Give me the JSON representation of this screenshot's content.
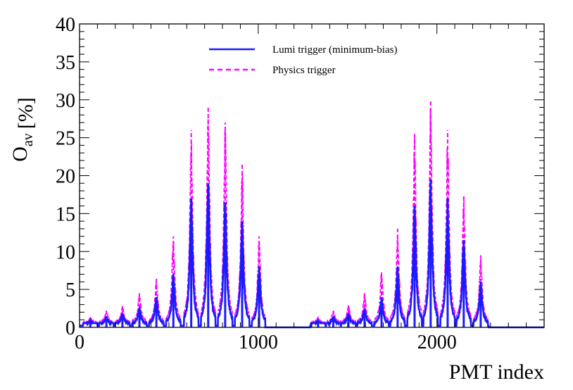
{
  "chart_data": {
    "type": "line",
    "xlabel": "PMT index",
    "ylabel": "O",
    "ylabel_subscript": "av",
    "ylabel_unit": "[%]",
    "xlim": [
      0,
      2600
    ],
    "ylim": [
      0,
      40
    ],
    "x_major_ticks": [
      0,
      1000,
      2000
    ],
    "x_tick_labels": [
      "0",
      "1000",
      "2000"
    ],
    "y_major_ticks": [
      0,
      5,
      10,
      15,
      20,
      25,
      30,
      35,
      40
    ],
    "y_tick_labels": [
      "0",
      "5",
      "10",
      "15",
      "20",
      "25",
      "30",
      "35",
      "40"
    ],
    "legend_position": "top-center",
    "series": [
      {
        "name": "Lumi trigger (minimum-bias)",
        "color": "#1a1aff",
        "style": "solid",
        "base_level": 0.5,
        "peaks": [
          {
            "x": 60,
            "value": 0.9
          },
          {
            "x": 150,
            "value": 1.4
          },
          {
            "x": 240,
            "value": 1.8
          },
          {
            "x": 335,
            "value": 2.6
          },
          {
            "x": 430,
            "value": 4.0
          },
          {
            "x": 525,
            "value": 7.0
          },
          {
            "x": 625,
            "value": 17.0
          },
          {
            "x": 720,
            "value": 19.0
          },
          {
            "x": 815,
            "value": 16.5
          },
          {
            "x": 910,
            "value": 14.0
          },
          {
            "x": 1005,
            "value": 8.0
          },
          {
            "x": 1335,
            "value": 0.9
          },
          {
            "x": 1420,
            "value": 1.4
          },
          {
            "x": 1505,
            "value": 1.8
          },
          {
            "x": 1595,
            "value": 2.5
          },
          {
            "x": 1690,
            "value": 4.0
          },
          {
            "x": 1780,
            "value": 8.0
          },
          {
            "x": 1875,
            "value": 16.0
          },
          {
            "x": 1965,
            "value": 19.5
          },
          {
            "x": 2060,
            "value": 17.0
          },
          {
            "x": 2150,
            "value": 11.5
          },
          {
            "x": 2245,
            "value": 6.0
          }
        ]
      },
      {
        "name": "Physics trigger",
        "color": "#ff00ff",
        "style": "dashed",
        "base_level": 0.7,
        "peaks": [
          {
            "x": 60,
            "value": 1.3
          },
          {
            "x": 150,
            "value": 2.2
          },
          {
            "x": 240,
            "value": 2.8
          },
          {
            "x": 335,
            "value": 4.5
          },
          {
            "x": 430,
            "value": 6.5
          },
          {
            "x": 525,
            "value": 12.0
          },
          {
            "x": 625,
            "value": 26.0
          },
          {
            "x": 720,
            "value": 29.0
          },
          {
            "x": 815,
            "value": 27.0
          },
          {
            "x": 910,
            "value": 21.5
          },
          {
            "x": 1005,
            "value": 12.0
          },
          {
            "x": 1335,
            "value": 1.3
          },
          {
            "x": 1420,
            "value": 2.2
          },
          {
            "x": 1505,
            "value": 2.9
          },
          {
            "x": 1595,
            "value": 4.5
          },
          {
            "x": 1690,
            "value": 7.5
          },
          {
            "x": 1780,
            "value": 13.0
          },
          {
            "x": 1875,
            "value": 25.5
          },
          {
            "x": 1965,
            "value": 30.0
          },
          {
            "x": 2060,
            "value": 26.0
          },
          {
            "x": 2150,
            "value": 17.5
          },
          {
            "x": 2245,
            "value": 9.5
          }
        ]
      }
    ],
    "zero_regions": [
      [
        1040,
        1290
      ],
      [
        2290,
        2600
      ]
    ]
  }
}
